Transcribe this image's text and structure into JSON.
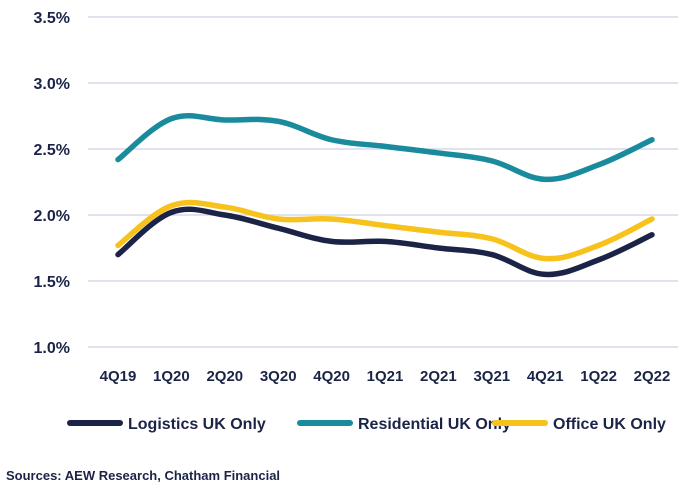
{
  "chart_data": {
    "type": "line",
    "categories": [
      "4Q19",
      "1Q20",
      "2Q20",
      "3Q20",
      "4Q20",
      "1Q21",
      "2Q21",
      "3Q21",
      "4Q21",
      "1Q22",
      "2Q22"
    ],
    "y_ticks": [
      "1.0%",
      "1.5%",
      "2.0%",
      "2.5%",
      "3.0%",
      "3.5%"
    ],
    "ylim": [
      1.0,
      3.5
    ],
    "grid": true,
    "legend_position": "bottom",
    "series": [
      {
        "name": "Logistics UK Only",
        "color": "#1b2447",
        "values": [
          1.7,
          2.02,
          2.0,
          1.9,
          1.8,
          1.8,
          1.75,
          1.7,
          1.55,
          1.66,
          1.85
        ]
      },
      {
        "name": "Residential UK Only",
        "color": "#1a8b9c",
        "values": [
          2.42,
          2.73,
          2.72,
          2.71,
          2.57,
          2.52,
          2.47,
          2.41,
          2.27,
          2.38,
          2.57
        ]
      },
      {
        "name": "Office UK Only",
        "color": "#f7c21b",
        "values": [
          1.77,
          2.07,
          2.06,
          1.97,
          1.97,
          1.92,
          1.87,
          1.82,
          1.67,
          1.77,
          1.97
        ]
      }
    ],
    "source": "Sources: AEW Research, Chatham Financial"
  }
}
